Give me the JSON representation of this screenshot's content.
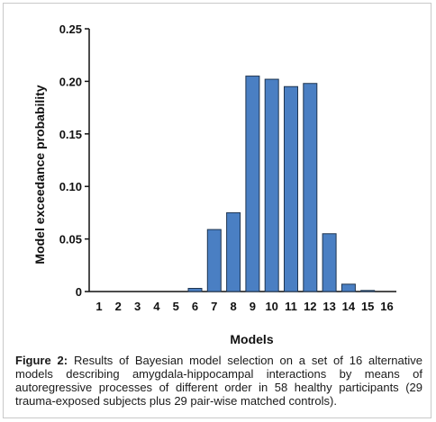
{
  "chart_data": {
    "type": "bar",
    "categories": [
      "1",
      "2",
      "3",
      "4",
      "5",
      "6",
      "7",
      "8",
      "9",
      "10",
      "11",
      "12",
      "13",
      "14",
      "15",
      "16"
    ],
    "values": [
      0,
      0,
      0,
      0,
      0,
      0.003,
      0.059,
      0.075,
      0.205,
      0.202,
      0.195,
      0.198,
      0.055,
      0.007,
      0.001,
      0
    ],
    "xlabel": "Models",
    "ylabel": "Model exceedance probability",
    "ylim": [
      0,
      0.25
    ],
    "yticks": [
      "0",
      "0.05",
      "0.10",
      "0.15",
      "0.20",
      "0.25"
    ],
    "grid": false,
    "bar_color": "#4a7fc3",
    "bar_edge_color": "#1f3550"
  },
  "caption": {
    "label": "Figure 2:",
    "text": " Results of Bayesian model selection on a set of 16 alternative models describing amygdala-hippocampal interactions by means of autoregressive processes of different order in 58 healthy participants (29 trauma-exposed subjects plus 29 pair-wise matched controls)."
  }
}
